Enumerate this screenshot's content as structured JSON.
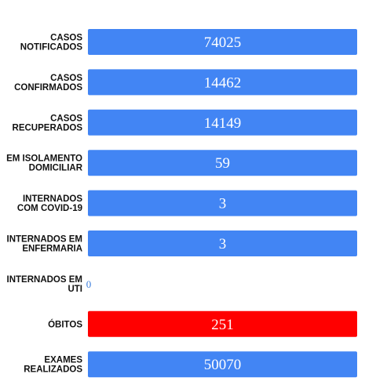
{
  "chart_data": {
    "type": "bar",
    "orientation": "horizontal",
    "categories": [
      [
        "CASOS",
        "NOTIFICADOS"
      ],
      [
        "CASOS",
        "CONFIRMADOS"
      ],
      [
        "CASOS",
        "RECUPERADOS"
      ],
      [
        "EM ISOLAMENTO",
        "DOMICILIAR"
      ],
      [
        "INTERNADOS",
        "COM COVID-19"
      ],
      [
        "INTERNADOS EM",
        "ENFERMARIA"
      ],
      [
        "INTERNADOS EM",
        "UTI"
      ],
      [
        "ÓBITOS"
      ],
      [
        "EXAMES",
        "REALIZADOS"
      ]
    ],
    "values": [
      74025,
      14462,
      14149,
      59,
      3,
      3,
      0,
      251,
      50070
    ],
    "value_labels": [
      "74025",
      "14462",
      "14149",
      "59",
      "3",
      "3",
      "0",
      "251",
      "50070"
    ],
    "bar_colors": [
      "#4285f4",
      "#4285f4",
      "#4285f4",
      "#4285f4",
      "#4285f4",
      "#4285f4",
      "#4285f4",
      "#ff0000",
      "#4285f4"
    ],
    "note_display": "each non-zero bar rendered at equal full length; label shows value",
    "grid": false,
    "legend": "none"
  }
}
